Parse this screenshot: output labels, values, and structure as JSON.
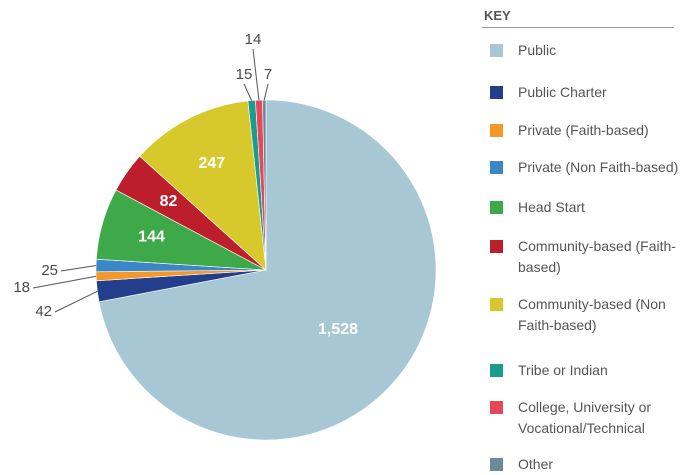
{
  "chart_data": {
    "type": "pie",
    "legend_title": "KEY",
    "categories": [
      "Public",
      "Public Charter",
      "Private (Faith-based)",
      "Private (Non Faith-based)",
      "Head Start",
      "Community-based (Faith-based)",
      "Community-based (Non Faith-based)",
      "Tribe or Indian",
      "College, University or Vocational/Technical",
      "Other"
    ],
    "values": [
      1528,
      42,
      18,
      25,
      144,
      82,
      247,
      15,
      14,
      7
    ],
    "value_labels": [
      "1,528",
      "42",
      "18",
      "25",
      "144",
      "82",
      "247",
      "15",
      "14",
      "7"
    ],
    "colors": [
      "#a8c7d5",
      "#233f8b",
      "#f3982a",
      "#3b86c7",
      "#3ea948",
      "#bc1e2c",
      "#d7c82b",
      "#1a9b8e",
      "#e4485a",
      "#6c8b99"
    ],
    "legend_position": "right"
  }
}
